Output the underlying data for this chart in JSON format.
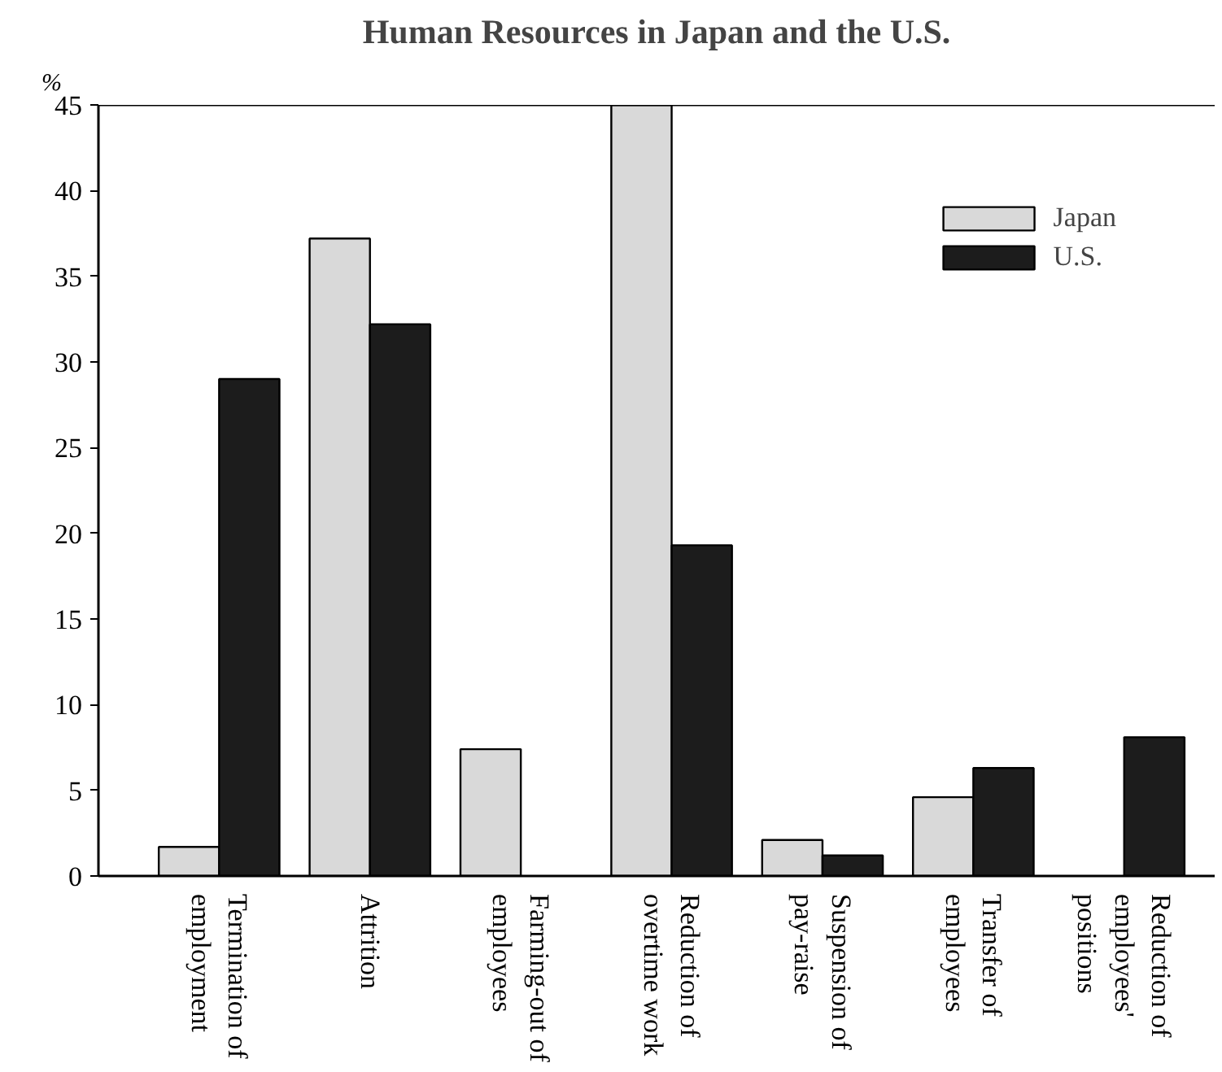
{
  "chart_data": {
    "type": "bar",
    "title": "Human Resources in Japan and the U.S.",
    "ylabel": "%",
    "categories": [
      "Termination of employment",
      "Attrition",
      "Farming-out of employees",
      "Reduction of overtime work",
      "Suspension of pay-raise",
      "Transfer of employees",
      "Reduction of employees' positions"
    ],
    "series": [
      {
        "name": "Japan",
        "color": "#d9d9d9",
        "values": [
          1.7,
          37.2,
          7.4,
          45,
          2.1,
          4.6,
          null
        ]
      },
      {
        "name": "U.S.",
        "color": "#1c1c1c",
        "values": [
          29,
          32.2,
          null,
          19.3,
          1.2,
          6.3,
          8.1
        ]
      }
    ],
    "ylim": [
      0,
      45
    ],
    "yticks": [
      0,
      5,
      10,
      15,
      20,
      25,
      30,
      35,
      40,
      45
    ],
    "grid": false,
    "legend": "top right"
  }
}
